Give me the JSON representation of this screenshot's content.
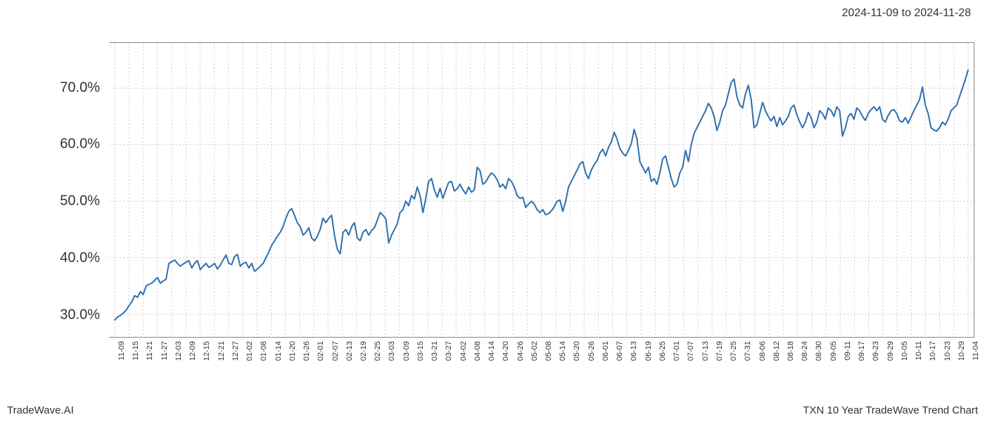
{
  "header": {
    "date_range": "2024-11-09 to 2024-11-28"
  },
  "footer": {
    "left": "TradeWave.AI",
    "right": "TXN 10 Year TradeWave Trend Chart"
  },
  "chart": {
    "type": "line",
    "background_color": "#ffffff",
    "grid_color": "#cccccc",
    "grid_dash": "2,3",
    "axis_border_color": "#888888",
    "line_color": "#2f6fad",
    "line_width": 2,
    "highlight_band": {
      "x_start_label": "11-09",
      "x_end_label": "11-28",
      "fill_color": "#e0ecd9",
      "stroke_color": "#a8c99e"
    },
    "ylim": [
      26,
      78
    ],
    "y_ticks": [
      30,
      40,
      50,
      60,
      70
    ],
    "y_tick_format": "{v}.0%",
    "y_label_fontsize": 20,
    "x_tick_fontsize": 11,
    "x_tick_rotation": -90,
    "x_labels": [
      "11-09",
      "11-15",
      "11-21",
      "11-27",
      "12-03",
      "12-09",
      "12-15",
      "12-21",
      "12-27",
      "01-02",
      "01-08",
      "01-14",
      "01-20",
      "01-26",
      "02-01",
      "02-07",
      "02-13",
      "02-19",
      "02-25",
      "03-03",
      "03-09",
      "03-15",
      "03-21",
      "03-27",
      "04-02",
      "04-08",
      "04-14",
      "04-20",
      "04-26",
      "05-02",
      "05-08",
      "05-14",
      "05-20",
      "05-26",
      "06-01",
      "06-07",
      "06-13",
      "06-19",
      "06-25",
      "07-01",
      "07-07",
      "07-13",
      "07-19",
      "07-25",
      "07-31",
      "08-06",
      "08-12",
      "08-18",
      "08-24",
      "08-30",
      "09-05",
      "09-11",
      "09-17",
      "09-23",
      "09-29",
      "10-05",
      "10-11",
      "10-17",
      "10-23",
      "10-29",
      "11-04"
    ],
    "x_label_step": 1,
    "series": [
      {
        "name": "TXN",
        "data": [
          29.0,
          29.5,
          29.8,
          30.2,
          30.7,
          31.5,
          32.2,
          33.3,
          33.0,
          34.0,
          33.5,
          35.0,
          35.3,
          35.5,
          36.0,
          36.5,
          35.5,
          35.9,
          36.2,
          39.0,
          39.3,
          39.6,
          39.0,
          38.5,
          38.9,
          39.2,
          39.5,
          38.2,
          39.0,
          39.5,
          37.9,
          38.5,
          39.0,
          38.3,
          38.6,
          39.0,
          38.0,
          38.7,
          39.6,
          40.5,
          39.0,
          38.8,
          40.2,
          40.6,
          38.5,
          39.0,
          39.2,
          38.2,
          39.0,
          37.6,
          38.0,
          38.5,
          39.0,
          40.0,
          41.0,
          42.2,
          43.0,
          43.8,
          44.5,
          45.5,
          47.0,
          48.2,
          48.7,
          47.5,
          46.2,
          45.5,
          44.0,
          44.5,
          45.3,
          43.5,
          43.0,
          43.8,
          45.0,
          47.0,
          46.2,
          47.0,
          47.5,
          44.0,
          41.5,
          40.7,
          44.5,
          45.0,
          44.0,
          45.5,
          46.2,
          43.5,
          43.0,
          44.5,
          45.0,
          44.0,
          44.8,
          45.3,
          46.6,
          48.0,
          47.5,
          46.9,
          42.6,
          44.0,
          45.0,
          46.0,
          48.0,
          48.5,
          50.0,
          49.2,
          51.0,
          50.4,
          52.5,
          51.0,
          48.0,
          50.5,
          53.5,
          54.0,
          52.0,
          50.7,
          52.3,
          50.5,
          52.0,
          53.3,
          53.5,
          51.8,
          52.2,
          53.0,
          52.0,
          51.3,
          52.5,
          51.6,
          52.0,
          56.0,
          55.4,
          53.0,
          53.4,
          54.3,
          55.0,
          54.6,
          53.8,
          52.5,
          53.0,
          52.2,
          54.0,
          53.5,
          52.5,
          51.0,
          50.5,
          50.7,
          48.9,
          49.5,
          50.0,
          49.5,
          48.5,
          48.0,
          48.5,
          47.6,
          47.8,
          48.3,
          49.0,
          50.0,
          50.2,
          48.2,
          50.0,
          52.5,
          53.5,
          54.5,
          55.5,
          56.6,
          57.0,
          55.0,
          54.0,
          55.5,
          56.5,
          57.2,
          58.5,
          59.2,
          58.0,
          59.5,
          60.5,
          62.2,
          61.0,
          59.3,
          58.5,
          58.0,
          59.0,
          60.2,
          62.7,
          61.0,
          57.0,
          56.0,
          55.0,
          56.0,
          53.5,
          54.0,
          53.0,
          55.0,
          57.5,
          58.0,
          56.0,
          54.0,
          52.5,
          53.0,
          55.0,
          56.0,
          59.0,
          57.0,
          60.0,
          62.0,
          63.0,
          64.0,
          65.0,
          66.0,
          67.3,
          66.5,
          65.0,
          62.5,
          64.0,
          66.0,
          67.0,
          69.0,
          71.0,
          71.6,
          68.5,
          67.0,
          66.5,
          69.0,
          70.5,
          68.0,
          63.0,
          63.5,
          65.5,
          67.5,
          66.0,
          65.0,
          64.2,
          65.0,
          63.2,
          64.8,
          63.5,
          64.2,
          65.0,
          66.5,
          67.0,
          65.3,
          64.0,
          63.0,
          64.0,
          65.7,
          64.8,
          63.0,
          64.0,
          66.0,
          65.5,
          64.5,
          66.5,
          66.0,
          65.0,
          66.7,
          66.0,
          61.5,
          63.0,
          65.0,
          65.5,
          64.5,
          66.5,
          66.0,
          65.0,
          64.3,
          65.5,
          66.2,
          66.7,
          66.0,
          66.7,
          64.5,
          64.0,
          65.2,
          66.0,
          66.2,
          65.5,
          64.2,
          64.0,
          64.8,
          63.8,
          64.9,
          66.0,
          67.0,
          68.0,
          70.2,
          67.0,
          65.5,
          63.0,
          62.6,
          62.4,
          63.0,
          64.0,
          63.5,
          64.5,
          66.0,
          66.5,
          67.0,
          68.5,
          70.0,
          71.5,
          73.2
        ]
      }
    ]
  }
}
